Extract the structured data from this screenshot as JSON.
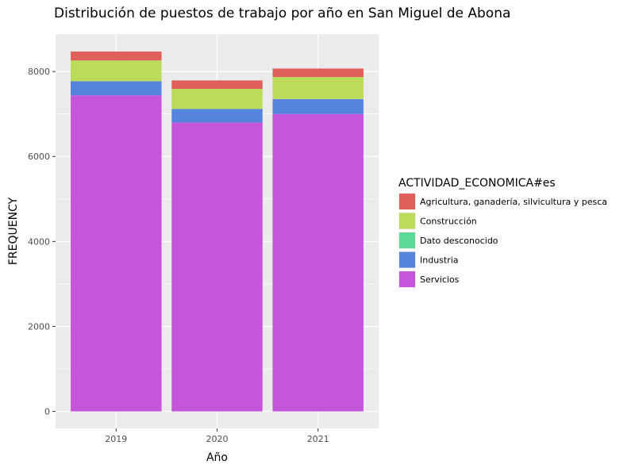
{
  "chart_data": {
    "type": "bar",
    "stacked": true,
    "title": "Distribución de puestos de trabajo por año en San Miguel de Abona",
    "xlabel": "Año",
    "ylabel": "FREQUENCY",
    "categories": [
      "2019",
      "2020",
      "2021"
    ],
    "yticks": [
      0,
      2000,
      4000,
      6000,
      8000
    ],
    "ylim": [
      -400,
      8880
    ],
    "legend": {
      "title": "ACTIVIDAD_ECONOMICA#es",
      "position": "right"
    },
    "series": [
      {
        "name": "Agricultura, ganadería, silvicultura y pesca",
        "color": "#e05f5a",
        "values": [
          210,
          200,
          200
        ]
      },
      {
        "name": "Construcción",
        "color": "#bcdb58",
        "values": [
          490,
          470,
          520
        ]
      },
      {
        "name": "Dato desconocido",
        "color": "#5cd898",
        "values": [
          0,
          0,
          0
        ]
      },
      {
        "name": "Industria",
        "color": "#5584de",
        "values": [
          330,
          320,
          350
        ]
      },
      {
        "name": "Servicios",
        "color": "#c656d9",
        "values": [
          7440,
          6800,
          7000
        ]
      }
    ],
    "grid": true
  }
}
